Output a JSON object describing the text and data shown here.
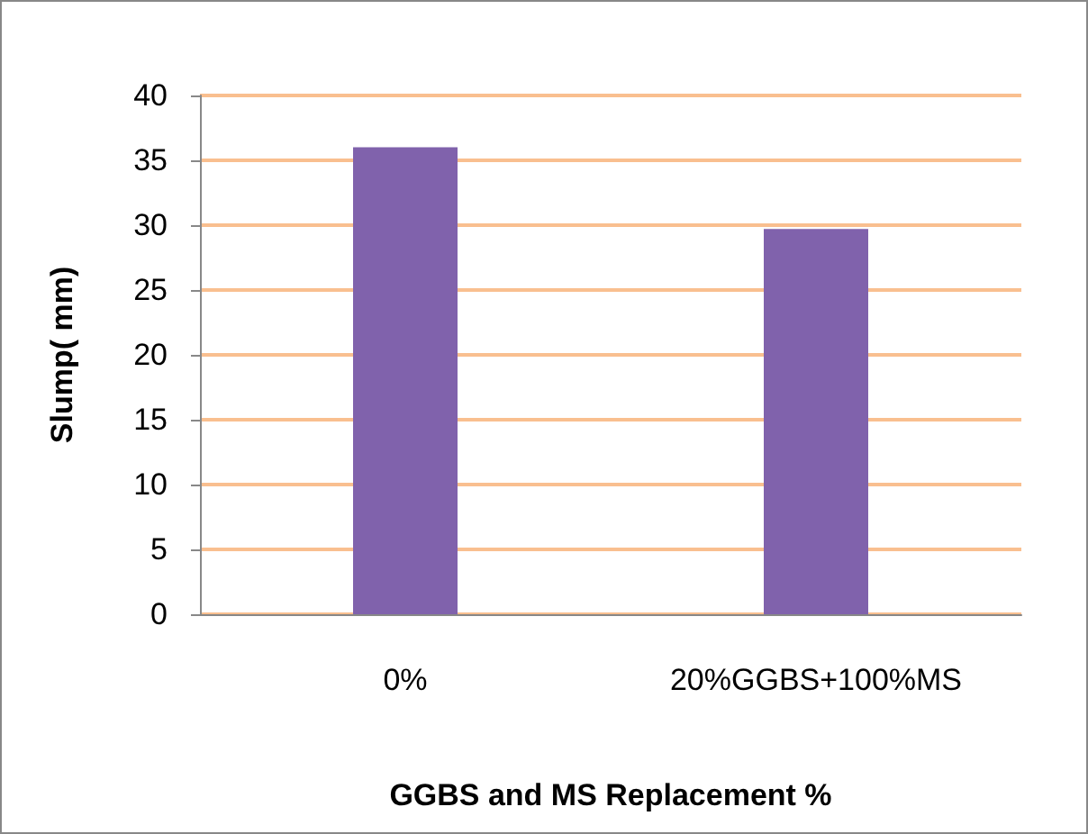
{
  "chart_data": {
    "type": "bar",
    "categories": [
      "0%",
      "20%GGBS+100%MS"
    ],
    "values": [
      36,
      29.7
    ],
    "color": "#8062ac",
    "xlabel": "GGBS and MS Replacement %",
    "ylabel": "Slump( mm)",
    "ylim": [
      0,
      40
    ],
    "yticks": [
      0,
      5,
      10,
      15,
      20,
      25,
      30,
      35,
      40
    ],
    "grid": "y"
  }
}
